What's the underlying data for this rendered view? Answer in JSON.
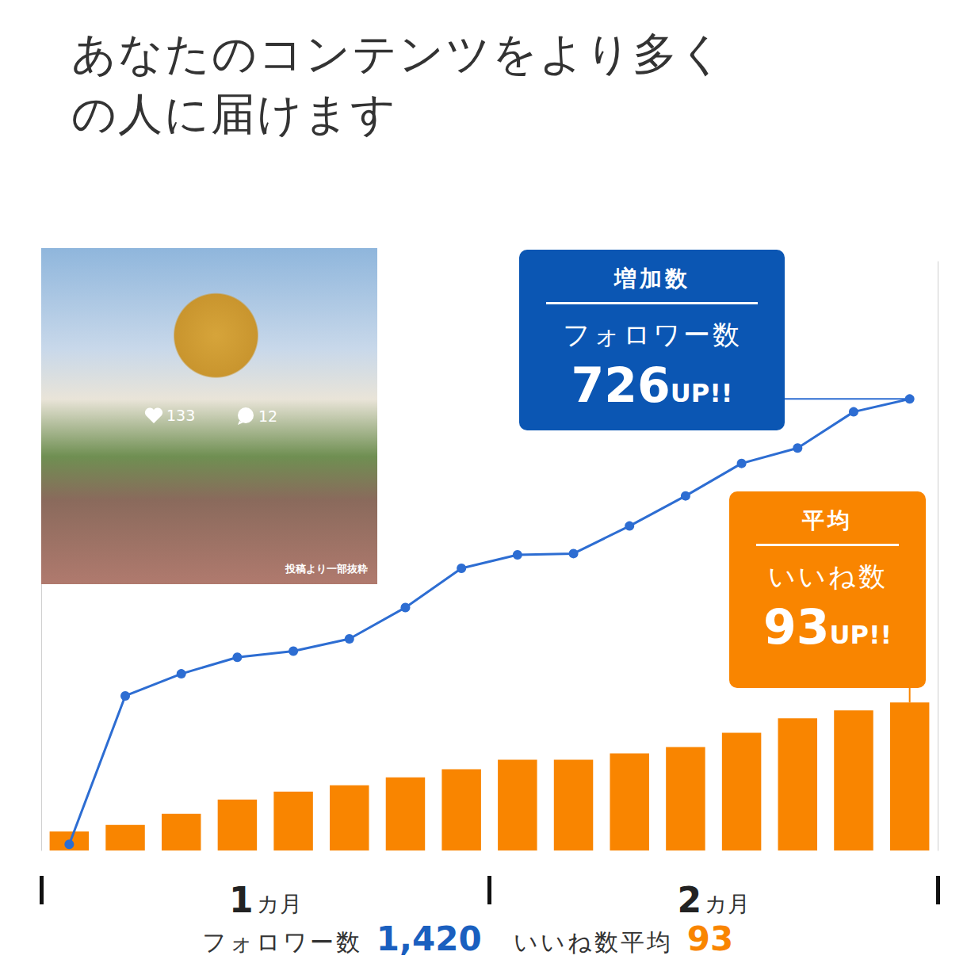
{
  "heading": "あなたのコンテンツをより多くの人に届けます",
  "photo": {
    "likes": "133",
    "comments": "12",
    "caption": "投稿より一部抜粋"
  },
  "annotations": [
    {
      "header": "増加数",
      "label": "フォロワー数",
      "value": 726,
      "suffix": "UP!!",
      "color": "#0b56b3"
    },
    {
      "header": "平均",
      "label": "いいね数",
      "value": 93,
      "suffix": "UP!!",
      "color": "#f98500"
    }
  ],
  "summary": [
    {
      "label": "フォロワー数",
      "text": "1,420",
      "color": "#1a5fbf"
    },
    {
      "label": "いいね数平均",
      "text": "93",
      "color": "#f98500"
    }
  ],
  "chart_data": {
    "type": "bar",
    "categories": [
      null,
      null,
      null,
      null,
      null,
      null,
      null,
      null,
      null,
      null,
      null,
      null,
      null,
      null,
      null,
      null
    ],
    "x_groups": [
      "1カ月",
      "2カ月"
    ],
    "series": [
      {
        "name": "いいね数",
        "type": "bar",
        "color": "#f98500",
        "values": [
          12,
          16,
          23,
          32,
          37,
          41,
          46,
          51,
          57,
          57,
          61,
          65,
          74,
          83,
          88,
          93
        ]
      },
      {
        "name": "フォロワー数",
        "type": "line",
        "axis": "y2",
        "color": "#2d6dd2",
        "marker": "circle",
        "values": [
          694,
          936,
          972,
          999,
          1009,
          1029,
          1080,
          1144,
          1166,
          1168,
          1213,
          1262,
          1315,
          1340,
          1399,
          1420
        ]
      }
    ],
    "ylim": [
      0,
      370
    ],
    "y2lim": [
      684,
      1644
    ],
    "grid": false,
    "tick_labels": "x"
  }
}
